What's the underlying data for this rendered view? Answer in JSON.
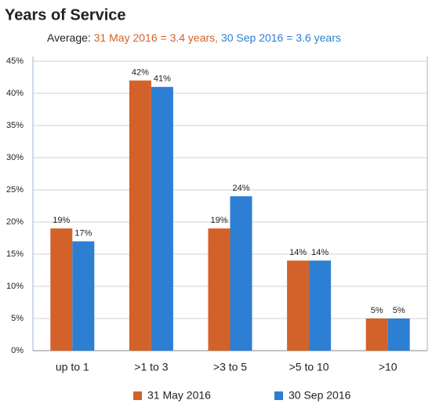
{
  "chart_data": {
    "type": "bar",
    "title": "Years of Service",
    "subtitle": [
      "Average:",
      "31 May 2016 = 3.4 years,",
      "30 Sep 2016 = 3.6 years"
    ],
    "categories": [
      "up  to 1",
      ">1 to 3",
      ">3 to 5",
      ">5 to 10",
      ">10"
    ],
    "series": [
      {
        "name": "31 May 2016",
        "color": "#d2622a",
        "values": [
          19,
          42,
          19,
          14,
          5
        ],
        "value_labels": [
          "19%",
          "42%",
          "19%",
          "14%",
          "5%"
        ]
      },
      {
        "name": "30 Sep 2016",
        "color": "#2d7fd3",
        "values": [
          17,
          41,
          24,
          14,
          5
        ],
        "value_labels": [
          "17%",
          "41%",
          "24%",
          "14%",
          "5%"
        ]
      }
    ],
    "ylim": [
      0,
      45
    ],
    "yticks": [
      {
        "value": 0,
        "label": "0%"
      },
      {
        "value": 5,
        "label": "5%"
      },
      {
        "value": 10,
        "label": "10%"
      },
      {
        "value": 15,
        "label": "15%"
      },
      {
        "value": 20,
        "label": "20%"
      },
      {
        "value": 25,
        "label": "25%"
      },
      {
        "value": 30,
        "label": "30%"
      },
      {
        "value": 35,
        "label": "35%"
      },
      {
        "value": 40,
        "label": "40%"
      },
      {
        "value": 45,
        "label": "45%"
      }
    ],
    "grid": true,
    "legend": "bottom"
  }
}
